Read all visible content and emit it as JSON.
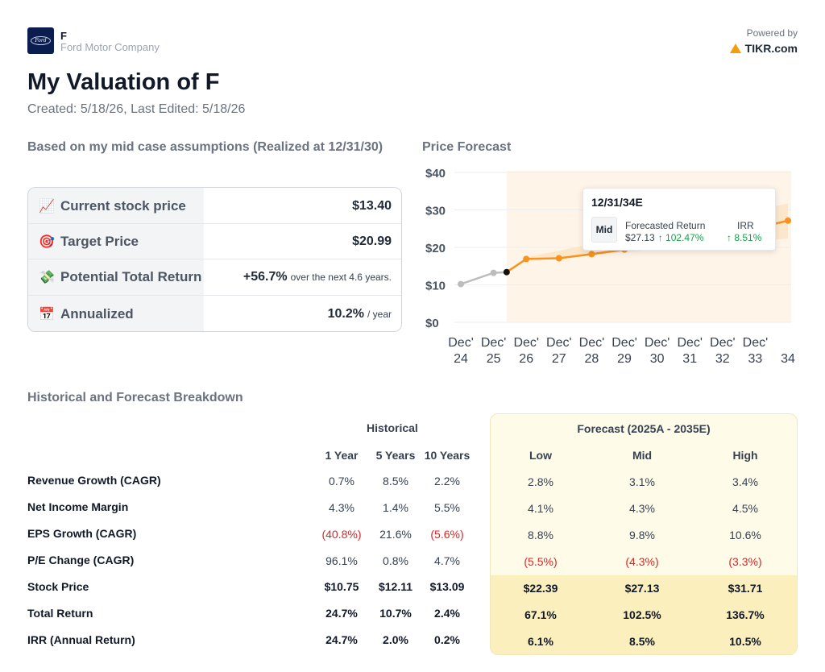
{
  "header": {
    "ticker": "F",
    "company": "Ford Motor Company",
    "logo_text": "Ford",
    "powered_label": "Powered by",
    "powered_brand": "TIKR.com"
  },
  "title": "My Valuation of F",
  "dates": "Created: 5/18/26, Last Edited: 5/18/26",
  "summary": {
    "title": "Based on my mid case assumptions (Realized at 12/31/30)",
    "rows": [
      {
        "icon": "chart-increasing-icon",
        "emoji": "📈",
        "label": "Current stock price",
        "value": "$13.40",
        "suffix": ""
      },
      {
        "icon": "target-icon",
        "emoji": "🎯",
        "label": "Target Price",
        "value": "$20.99",
        "suffix": ""
      },
      {
        "icon": "money-icon",
        "emoji": "💸",
        "label": "Potential Total Return",
        "value": "+56.7%",
        "suffix": "over the next 4.6 years."
      },
      {
        "icon": "calendar-icon",
        "emoji": "📅",
        "label": "Annualized",
        "value": "10.2%",
        "suffix": "/ year"
      }
    ]
  },
  "chart_title": "Price Forecast",
  "tooltip": {
    "date": "12/31/34E",
    "case": "Mid",
    "h1": "Forecasted Return",
    "h2": "IRR",
    "price": "$27.13",
    "return": "↑ 102.47%",
    "irr": "↑ 8.51%"
  },
  "chart_data": {
    "type": "line",
    "title": "Price Forecast",
    "x_labels": [
      "Dec' 24",
      "Dec' 25",
      "Dec' 26",
      "Dec' 27",
      "Dec' 28",
      "Dec' 29",
      "Dec' 30",
      "Dec' 31",
      "Dec' 32",
      "Dec' 33",
      "34"
    ],
    "y_ticks": [
      "$0",
      "$10",
      "$20",
      "$30",
      "$40"
    ],
    "ylim": [
      0,
      40
    ],
    "historical": {
      "x": [
        0,
        1,
        1.4
      ],
      "y": [
        10.2,
        13.2,
        13.4
      ]
    },
    "forecast_mid": {
      "x": [
        2,
        3,
        4,
        5,
        6,
        7,
        8,
        9,
        10
      ],
      "y": [
        16.9,
        17.1,
        18.2,
        19.4,
        20.6,
        21.9,
        23.3,
        25.1,
        27.13
      ]
    },
    "forecast_high": {
      "x": [
        2,
        10
      ],
      "y": [
        17.3,
        31.7
      ]
    },
    "forecast_low": {
      "x": [
        2,
        10
      ],
      "y": [
        16.5,
        22.4
      ]
    },
    "colors": {
      "historical": "#bdbdbd",
      "forecast": "#f7931e",
      "band": "#fde6c8",
      "shade": "#fff4e8"
    }
  },
  "breakdown": {
    "title": "Historical and Forecast Breakdown",
    "historical_title": "Historical",
    "forecast_title": "Forecast (2025A - 2035E)",
    "hist_cols": [
      "1 Year",
      "5 Years",
      "10 Years"
    ],
    "fc_cols": [
      "Low",
      "Mid",
      "High"
    ],
    "rows": [
      {
        "label": "Revenue Growth (CAGR)",
        "hist": [
          "0.7%",
          "8.5%",
          "2.2%"
        ],
        "fc": [
          "2.8%",
          "3.1%",
          "3.4%"
        ]
      },
      {
        "label": "Net Income Margin",
        "hist": [
          "4.3%",
          "1.4%",
          "5.5%"
        ],
        "fc": [
          "4.1%",
          "4.3%",
          "4.5%"
        ]
      },
      {
        "label": "EPS Growth (CAGR)",
        "hist": [
          "(40.8%)",
          "21.6%",
          "(5.6%)"
        ],
        "fc": [
          "8.8%",
          "9.8%",
          "10.6%"
        ]
      },
      {
        "label": "P/E Change (CAGR)",
        "hist": [
          "96.1%",
          "0.8%",
          "4.7%"
        ],
        "fc": [
          "(5.5%)",
          "(4.3%)",
          "(3.3%)"
        ]
      },
      {
        "label": "Stock Price",
        "hist": [
          "$10.75",
          "$12.11",
          "$13.09"
        ],
        "fc": [
          "$22.39",
          "$27.13",
          "$31.71"
        ]
      },
      {
        "label": "Total Return",
        "hist": [
          "24.7%",
          "10.7%",
          "2.4%"
        ],
        "fc": [
          "67.1%",
          "102.5%",
          "136.7%"
        ]
      },
      {
        "label": "IRR (Annual Return)",
        "hist": [
          "24.7%",
          "2.0%",
          "0.2%"
        ],
        "fc": [
          "6.1%",
          "8.5%",
          "10.5%"
        ]
      }
    ]
  }
}
